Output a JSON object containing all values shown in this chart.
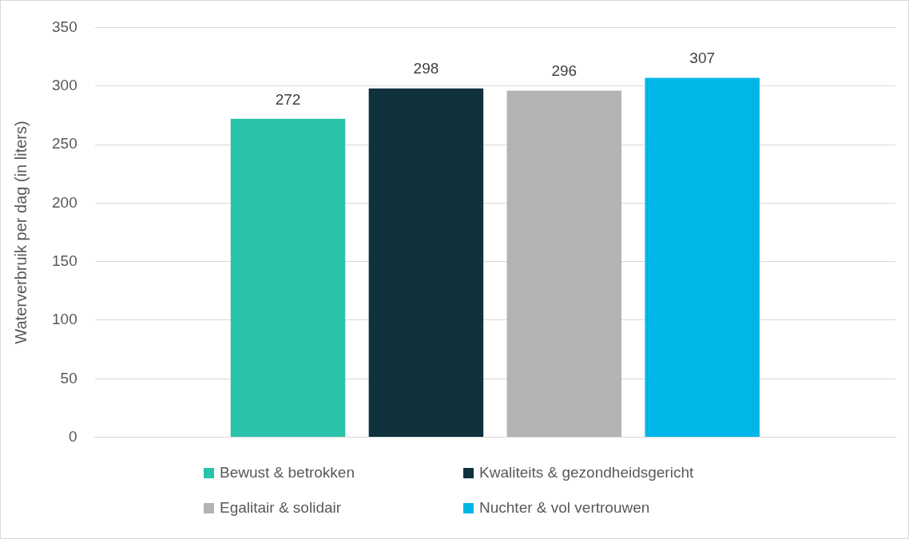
{
  "chart_data": {
    "type": "bar",
    "ylabel": "Waterverbruik per dag (in liters)",
    "categories": [
      null
    ],
    "series": [
      {
        "name": "Bewust & betrokken",
        "color": "#29c3a9",
        "values": [
          272
        ]
      },
      {
        "name": "Kwaliteits & gezondheidsgericht",
        "color": "#0f323d",
        "values": [
          298
        ]
      },
      {
        "name": "Egalitair & solidair",
        "color": "#b3b3b3",
        "values": [
          296
        ]
      },
      {
        "name": "Nuchter & vol vertrouwen",
        "color": "#00b6e8",
        "values": [
          307
        ]
      }
    ],
    "ylim": [
      0,
      350
    ],
    "yticks": [
      0,
      50,
      100,
      150,
      200,
      250,
      300,
      350
    ],
    "grid": "y",
    "legend": "bottom",
    "data_labels": true
  }
}
